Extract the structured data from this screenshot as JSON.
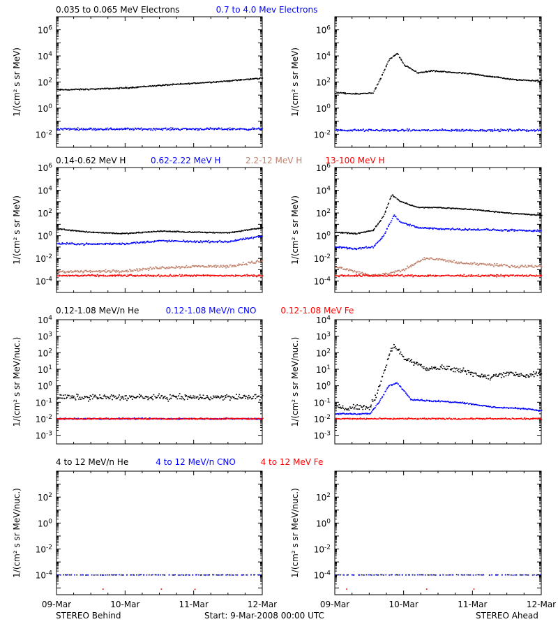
{
  "colors": {
    "black": "#000000",
    "blue": "#0000ff",
    "tan": "#c0806a",
    "red": "#ff0000"
  },
  "figure": {
    "footer_left": "STEREO Behind",
    "footer_center": "Start:  9-Mar-2008 00:00 UTC",
    "footer_right": "STEREO Ahead",
    "time_ticks": [
      "09-Mar",
      "10-Mar",
      "11-Mar",
      "12-Mar"
    ]
  },
  "rows": [
    {
      "ylabel": "1/(cm² s sr MeV)",
      "legend": [
        {
          "text": "0.035 to 0.065 MeV Electrons",
          "color": "#000000"
        },
        {
          "text": "0.7 to 4.0 Mev Electrons",
          "color": "#0000ff"
        }
      ],
      "ytick_exponents": [
        6,
        4,
        2,
        0,
        -2
      ],
      "ylim_exp": [
        -3,
        7
      ]
    },
    {
      "ylabel": "1/(cm² s sr MeV)",
      "legend": [
        {
          "text": "0.14-0.62 MeV H",
          "color": "#000000"
        },
        {
          "text": "0.62-2.22 MeV H",
          "color": "#0000ff"
        },
        {
          "text": "2.2-12 MeV H",
          "color": "#c0806a"
        },
        {
          "text": "13-100 MeV H",
          "color": "#ff0000"
        }
      ],
      "ytick_exponents": [
        6,
        4,
        2,
        0,
        -2,
        -4
      ],
      "ylim_exp": [
        -5,
        6
      ]
    },
    {
      "ylabel": "1/(cm² s sr MeV/nuc.)",
      "legend": [
        {
          "text": "0.12-1.08 MeV/n He",
          "color": "#000000"
        },
        {
          "text": "0.12-1.08 MeV/n CNO",
          "color": "#0000ff"
        },
        {
          "text": "0.12-1.08 MeV Fe",
          "color": "#ff0000"
        }
      ],
      "ytick_exponents": [
        4,
        3,
        2,
        1,
        0,
        -1,
        -2,
        -3
      ],
      "ylim_exp": [
        -3.5,
        4
      ]
    },
    {
      "ylabel": "1/(cm² s sr MeV/nuc.)",
      "legend": [
        {
          "text": "4 to 12 MeV/n He",
          "color": "#000000"
        },
        {
          "text": "4 to 12 MeV/n CNO",
          "color": "#0000ff"
        },
        {
          "text": "4 to 12 MeV Fe",
          "color": "#ff0000"
        }
      ],
      "ytick_exponents": [
        2,
        0,
        -2,
        -4
      ],
      "ylim_exp": [
        -5.5,
        4
      ]
    }
  ],
  "chart_data": [
    {
      "type": "scatter",
      "panel": "row1-left",
      "x_unit": "days since 09-Mar-2008 00:00 UTC",
      "xlim": [
        0,
        3
      ],
      "yscale": "log",
      "ylim": [
        0.001,
        10000000
      ],
      "series": [
        {
          "name": "0.035 to 0.065 MeV Electrons",
          "color": "#000000",
          "x": [
            0,
            0.5,
            1.0,
            1.5,
            2.0,
            2.5,
            3.0
          ],
          "y": [
            25,
            28,
            35,
            55,
            80,
            120,
            200
          ]
        },
        {
          "name": "0.7 to 4.0 Mev Electrons",
          "color": "#0000ff",
          "x": [
            0,
            1.5,
            3.0
          ],
          "y": [
            0.025,
            0.025,
            0.025
          ]
        }
      ]
    },
    {
      "type": "scatter",
      "panel": "row1-right",
      "x_unit": "days since 09-Mar-2008 00:00 UTC",
      "xlim": [
        0,
        3
      ],
      "yscale": "log",
      "ylim": [
        0.001,
        10000000
      ],
      "series": [
        {
          "name": "0.035 to 0.065 MeV Electrons",
          "color": "#000000",
          "x": [
            0,
            0.3,
            0.55,
            0.65,
            0.78,
            0.9,
            1.0,
            1.2,
            1.4,
            1.6,
            1.8,
            2.0,
            2.3,
            2.6,
            3.0
          ],
          "y": [
            15,
            12,
            15,
            150,
            5000,
            15000,
            2000,
            500,
            700,
            600,
            500,
            400,
            250,
            150,
            120
          ]
        },
        {
          "name": "0.7 to 4.0 Mev Electrons",
          "color": "#0000ff",
          "x": [
            0,
            1.5,
            3.0
          ],
          "y": [
            0.02,
            0.02,
            0.02
          ]
        }
      ]
    },
    {
      "type": "scatter",
      "panel": "row2-left",
      "x_unit": "days since 09-Mar-2008 00:00 UTC",
      "xlim": [
        0,
        3
      ],
      "yscale": "log",
      "ylim": [
        1e-05,
        1000000
      ],
      "series": [
        {
          "name": "0.14-0.62 MeV H",
          "color": "#000000",
          "x": [
            0,
            0.5,
            1.0,
            1.5,
            2.0,
            2.5,
            3.0
          ],
          "y": [
            4,
            2,
            1.5,
            2.5,
            2,
            1.8,
            5
          ]
        },
        {
          "name": "0.62-2.22 MeV H",
          "color": "#0000ff",
          "x": [
            0,
            0.5,
            1.0,
            1.5,
            2.0,
            2.5,
            3.0
          ],
          "y": [
            0.2,
            0.18,
            0.2,
            0.35,
            0.3,
            0.3,
            0.9
          ]
        },
        {
          "name": "2.2-12 MeV H",
          "color": "#c0806a",
          "x": [
            0,
            0.5,
            1.0,
            1.5,
            2.0,
            2.5,
            3.0
          ],
          "y": [
            0.0007,
            0.0007,
            0.0008,
            0.0015,
            0.002,
            0.002,
            0.006
          ]
        },
        {
          "name": "13-100 MeV H",
          "color": "#ff0000",
          "x": [
            0,
            1.5,
            3.0
          ],
          "y": [
            0.0003,
            0.0003,
            0.0003
          ]
        }
      ]
    },
    {
      "type": "scatter",
      "panel": "row2-right",
      "x_unit": "days since 09-Mar-2008 00:00 UTC",
      "xlim": [
        0,
        3
      ],
      "yscale": "log",
      "ylim": [
        1e-05,
        1000000
      ],
      "series": [
        {
          "name": "0.14-0.62 MeV H",
          "color": "#000000",
          "x": [
            0,
            0.3,
            0.55,
            0.7,
            0.82,
            0.95,
            1.2,
            1.5,
            2.0,
            2.5,
            3.0
          ],
          "y": [
            2,
            1.5,
            3,
            50,
            4000,
            1000,
            300,
            300,
            200,
            100,
            60
          ]
        },
        {
          "name": "0.62-2.22 MeV H",
          "color": "#0000ff",
          "x": [
            0,
            0.3,
            0.55,
            0.7,
            0.85,
            0.95,
            1.2,
            1.5,
            2.0,
            2.5,
            3.0
          ],
          "y": [
            0.1,
            0.07,
            0.1,
            1,
            60,
            15,
            5,
            4,
            3.5,
            3,
            2.5
          ]
        },
        {
          "name": "2.2-12 MeV H",
          "color": "#c0806a",
          "x": [
            0,
            0.5,
            0.8,
            1.0,
            1.3,
            1.5,
            1.8,
            2.2,
            2.6,
            3.0
          ],
          "y": [
            0.002,
            0.0003,
            0.0005,
            0.001,
            0.01,
            0.008,
            0.004,
            0.003,
            0.002,
            0.002
          ]
        },
        {
          "name": "13-100 MeV H",
          "color": "#ff0000",
          "x": [
            0,
            1.5,
            3.0
          ],
          "y": [
            0.0003,
            0.0003,
            0.0003
          ]
        }
      ]
    },
    {
      "type": "scatter",
      "panel": "row3-left",
      "x_unit": "days since 09-Mar-2008 00:00 UTC",
      "xlim": [
        0,
        3
      ],
      "yscale": "log",
      "ylim": [
        0.0003,
        10000
      ],
      "series": [
        {
          "name": "0.12-1.08 MeV/n He",
          "color": "#000000",
          "x": [
            0,
            1.0,
            2.0,
            3.0
          ],
          "y": [
            0.2,
            0.2,
            0.2,
            0.2
          ]
        },
        {
          "name": "0.12-1.08 MeV/n CNO",
          "color": "#0000ff",
          "x": [
            0,
            1.5,
            3.0
          ],
          "y": [
            0.01,
            0.01,
            0.01
          ]
        },
        {
          "name": "0.12-1.08 MeV Fe",
          "color": "#ff0000",
          "x": [
            0,
            1.5,
            3.0
          ],
          "y": [
            0.01,
            0.01,
            0.01
          ]
        }
      ]
    },
    {
      "type": "scatter",
      "panel": "row3-right",
      "x_unit": "days since 09-Mar-2008 00:00 UTC",
      "xlim": [
        0,
        3
      ],
      "yscale": "log",
      "ylim": [
        0.0003,
        10000
      ],
      "series": [
        {
          "name": "0.12-1.08 MeV/n He",
          "color": "#000000",
          "x": [
            0,
            0.5,
            0.6,
            0.75,
            0.85,
            1.0,
            1.3,
            1.6,
            1.9,
            2.2,
            2.5,
            2.8,
            3.0
          ],
          "y": [
            0.05,
            0.05,
            0.3,
            30,
            300,
            50,
            12,
            12,
            8,
            3,
            6,
            4,
            5
          ]
        },
        {
          "name": "0.12-1.08 MeV/n CNO",
          "color": "#0000ff",
          "x": [
            0,
            0.5,
            0.62,
            0.78,
            0.9,
            1.1,
            1.4,
            1.8,
            2.3,
            2.8,
            3.0
          ],
          "y": [
            0.02,
            0.02,
            0.08,
            1,
            1.5,
            0.15,
            0.12,
            0.1,
            0.05,
            0.04,
            0.03
          ]
        },
        {
          "name": "0.12-1.08 MeV Fe",
          "color": "#ff0000",
          "x": [
            0,
            0.75,
            1.5,
            3.0
          ],
          "y": [
            0.01,
            0.01,
            0.01,
            0.01
          ]
        }
      ]
    },
    {
      "type": "scatter",
      "panel": "row4-left",
      "x_unit": "days since 09-Mar-2008 00:00 UTC",
      "xlim": [
        0,
        3
      ],
      "yscale": "log",
      "ylim": [
        3e-06,
        10000
      ],
      "series": [
        {
          "name": "4 to 12 MeV/n He",
          "color": "#000000",
          "x": [
            0,
            1.5,
            3.0
          ],
          "y": [
            0.0001,
            0.0001,
            0.0001
          ]
        },
        {
          "name": "4 to 12 MeV/n CNO",
          "color": "#0000ff",
          "x": [
            0,
            1.5,
            3.0
          ],
          "y": [
            0.0001,
            0.0001,
            0.0001
          ]
        },
        {
          "name": "4 to 12 MeV Fe",
          "color": "#ff0000",
          "x": [
            2.4
          ],
          "y": [
            8e-06
          ]
        }
      ]
    },
    {
      "type": "scatter",
      "panel": "row4-right",
      "x_unit": "days since 09-Mar-2008 00:00 UTC",
      "xlim": [
        0,
        3
      ],
      "yscale": "log",
      "ylim": [
        3e-06,
        10000
      ],
      "series": [
        {
          "name": "4 to 12 MeV/n He",
          "color": "#000000",
          "x": [
            0,
            1.5,
            3.0
          ],
          "y": [
            0.0001,
            0.0001,
            0.0001
          ]
        },
        {
          "name": "4 to 12 MeV/n CNO",
          "color": "#0000ff",
          "x": [
            0,
            1.5,
            3.0
          ],
          "y": [
            0.0001,
            0.0001,
            0.0001
          ]
        },
        {
          "name": "4 to 12 MeV Fe",
          "color": "#ff0000",
          "x": [
            0.25
          ],
          "y": [
            8e-06
          ]
        }
      ]
    }
  ]
}
